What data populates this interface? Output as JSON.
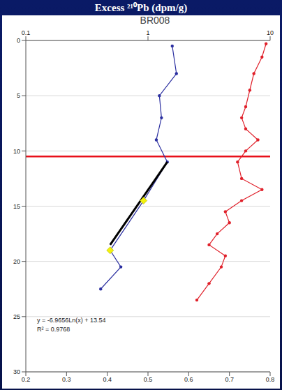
{
  "chart_data": {
    "type": "scatter",
    "title": "Excess ²¹⁰Pb (dpm/g)",
    "subtitle": "BR008",
    "log": "x",
    "grid": true,
    "xlim": [
      0.1,
      10
    ],
    "xticks": [
      0.1,
      1,
      10
    ],
    "x2lim": [
      0.2,
      0.8
    ],
    "x2ticks": [
      0.2,
      0.3,
      0.4,
      0.5,
      0.6,
      0.7,
      0.8
    ],
    "ylim": [
      0,
      30
    ],
    "yticks": [
      0,
      5,
      10,
      15,
      20,
      25,
      30
    ],
    "series": [
      {
        "color": "#2b2fa0",
        "marker": "circle",
        "line_style": "solid",
        "x": [
          1.58,
          1.71,
          1.24,
          1.29,
          1.17,
          1.44,
          0.92,
          0.49,
          0.6,
          0.41
        ],
        "y": [
          0.5,
          3,
          5,
          7,
          9,
          11,
          14.5,
          19,
          20.5,
          22.5
        ]
      },
      {
        "color": "#e0202a",
        "marker": "circle",
        "line_style": "solid",
        "axis": "x2",
        "x": [
          0.79,
          0.78,
          0.76,
          0.75,
          0.74,
          0.73,
          0.74,
          0.77,
          0.74,
          0.72,
          0.73,
          0.78,
          0.73,
          0.69,
          0.7,
          0.67,
          0.65,
          0.69,
          0.68,
          0.65,
          0.62
        ],
        "y": [
          0.3,
          1.5,
          3,
          4.5,
          6,
          7,
          8,
          9,
          10,
          11,
          12.5,
          13.5,
          14.5,
          15.5,
          16.5,
          17.5,
          18.5,
          19.5,
          20.5,
          22,
          23.5
        ]
      },
      {
        "color": "#000000",
        "marker": "none",
        "line_style": "solid",
        "x": [
          1.44,
          0.49
        ],
        "y": [
          11,
          18.5
        ]
      },
      {
        "color": "#f2f20c",
        "marker": "diamond",
        "line_style": "none",
        "x": [
          0.92,
          0.49
        ],
        "y": [
          14.5,
          19
        ]
      }
    ],
    "hlines": [
      {
        "value": 10.5,
        "color": "#e8101a"
      }
    ],
    "annotations": [
      "y = -6.9656Ln(x) + 13.54",
      "R² = 0.9768"
    ]
  }
}
